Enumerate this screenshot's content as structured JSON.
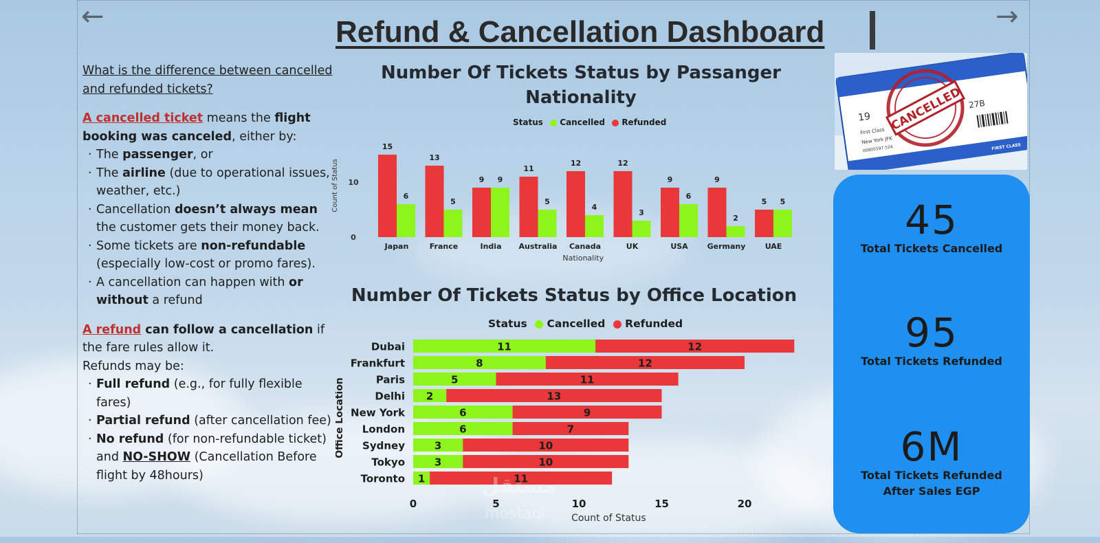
{
  "header": {
    "title": "Refund & Cancellation Dashboard",
    "back_arrow": "←",
    "forward_arrow": "→"
  },
  "explanation": {
    "question": "What is the difference between cancelled and refunded tickets?",
    "cancel_term": "A cancelled ticket",
    "cancel_mid": " means the ",
    "cancel_bold": "flight booking was canceled",
    "cancel_tail": ", either by:",
    "cancel_bullets": [
      {
        "pre": "The ",
        "bold": "passenger",
        "post": ", or"
      },
      {
        "pre": "The ",
        "bold": "airline",
        "post": " (due to operational issues, weather, etc.)"
      },
      {
        "pre": "Cancellation ",
        "bold": "doesn’t always mean",
        "post": " the customer gets their money back."
      },
      {
        "pre": "Some tickets are ",
        "bold": "non-refundable",
        "post": " (especially low-cost or promo fares)."
      },
      {
        "pre": "A cancellation can happen with ",
        "bold": "or without",
        "post": " a refund"
      }
    ],
    "refund_term": "A refund",
    "refund_bold": " can follow a cancellation",
    "refund_tail": " if the fare rules allow it.",
    "refund_intro": "Refunds may be:",
    "refund_bullets": [
      {
        "bold": "Full refund",
        "post": " (e.g., for fully flexible fares)"
      },
      {
        "bold": "Partial refund",
        "post": " (after cancellation fee)"
      },
      {
        "bold": "No refund",
        "post": " (for non-refundable ticket) and "
      }
    ],
    "noshow_term": "NO-SHOW",
    "noshow_tail": " (Cancellation Before flight by 48hours)"
  },
  "colors": {
    "cancelled": "#8ef51c",
    "refunded": "#e8383a",
    "kpi_panel": "#1f8ff0"
  },
  "chart_data": [
    {
      "type": "bar",
      "title": "Number Of Tickets Status by Passanger Nationality",
      "legend_title": "Status",
      "categories": [
        "Japan",
        "France",
        "India",
        "Australia",
        "Canada",
        "UK",
        "USA",
        "Germany",
        "UAE"
      ],
      "series": [
        {
          "name": "Refunded",
          "values": [
            15,
            13,
            9,
            11,
            12,
            12,
            9,
            9,
            5
          ]
        },
        {
          "name": "Cancelled",
          "values": [
            6,
            5,
            9,
            5,
            4,
            3,
            6,
            2,
            5
          ]
        }
      ],
      "xlabel": "Nationality",
      "ylabel": "Count of Status",
      "yticks": [
        0,
        10
      ],
      "ylim": [
        0,
        16
      ]
    },
    {
      "type": "bar",
      "orientation": "horizontal-stacked",
      "title": "Number Of Tickets Status by Office Location",
      "legend_title": "Status",
      "categories": [
        "Dubai",
        "Frankfurt",
        "Paris",
        "Delhi",
        "New York",
        "London",
        "Sydney",
        "Tokyo",
        "Toronto"
      ],
      "series": [
        {
          "name": "Cancelled",
          "values": [
            11,
            8,
            5,
            2,
            6,
            6,
            3,
            3,
            1
          ]
        },
        {
          "name": "Refunded",
          "values": [
            12,
            12,
            11,
            13,
            9,
            7,
            10,
            10,
            11
          ]
        }
      ],
      "xlabel": "Count of Status",
      "ylabel": "Office Location",
      "xticks": [
        0,
        5,
        10,
        15,
        20
      ],
      "xlim": [
        0,
        24
      ]
    }
  ],
  "ticket_image": {
    "stamp_text": "CANCELLED",
    "day": "19",
    "seat_class": "First Class",
    "route": "New York JFK",
    "code": "00805597 524",
    "row": "27B",
    "footer": "FIRST CLASS"
  },
  "kpis": [
    {
      "value": "45",
      "label": "Total Tickets Cancelled"
    },
    {
      "value": "95",
      "label": "Total Tickets Refunded"
    },
    {
      "value": "6M",
      "label": "Total Tickets Refunded After Sales EGP"
    }
  ],
  "watermark": {
    "arabic": "مستقل",
    "latin": "mostaql"
  }
}
